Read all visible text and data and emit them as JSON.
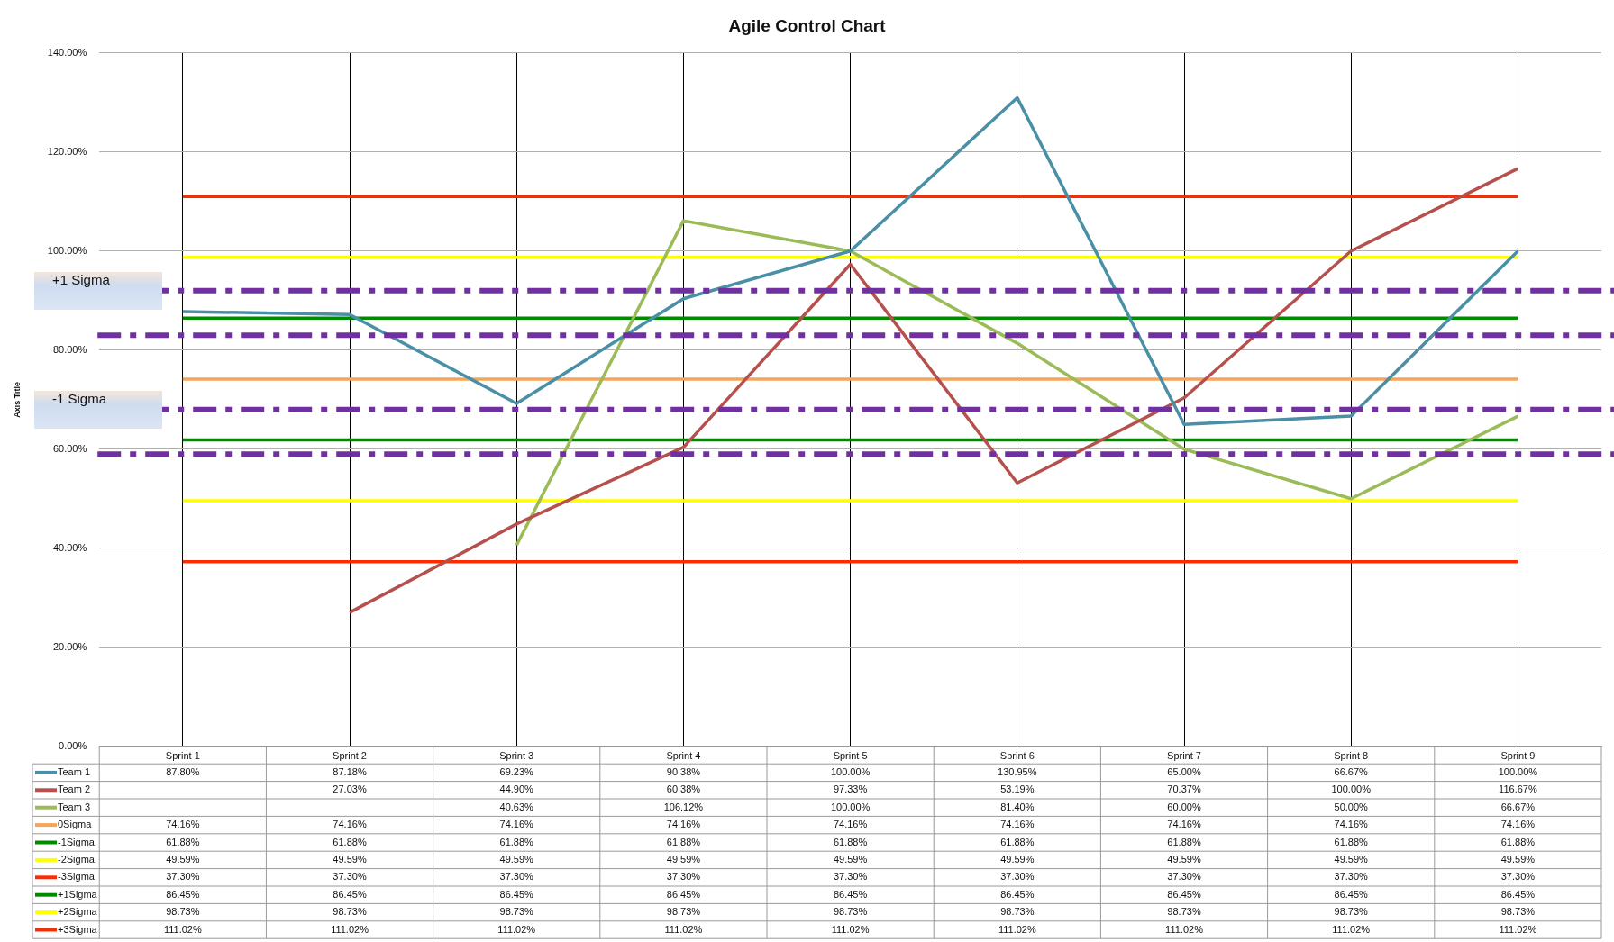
{
  "chart_data": {
    "type": "line",
    "title": "Agile Control Chart",
    "ylabel": "Axis Title",
    "categories": [
      "Sprint 1",
      "Sprint 2",
      "Sprint 3",
      "Sprint 4",
      "Sprint 5",
      "Sprint 6",
      "Sprint 7",
      "Sprint 8",
      "Sprint 9"
    ],
    "ylim": [
      0,
      140
    ],
    "yticks": [
      {
        "value": 0,
        "label": "0.00%"
      },
      {
        "value": 20,
        "label": "20.00%"
      },
      {
        "value": 40,
        "label": "40.00%"
      },
      {
        "value": 60,
        "label": "60.00%"
      },
      {
        "value": 80,
        "label": "80.00%"
      },
      {
        "value": 100,
        "label": "100.00%"
      },
      {
        "value": 120,
        "label": "120.00%"
      },
      {
        "value": 140,
        "label": "140.00%"
      }
    ],
    "grid": true,
    "legend": "bottom",
    "marker": "none",
    "line_style": "solid",
    "series": [
      {
        "name": "Team 1",
        "color": "#4a8fa6",
        "values": [
          87.8,
          87.18,
          69.23,
          90.38,
          100,
          130.95,
          65,
          66.67,
          100
        ],
        "value_labels": [
          "87.80%",
          "87.18%",
          "69.23%",
          "90.38%",
          "100.00%",
          "130.95%",
          "65.00%",
          "66.67%",
          "100.00%"
        ]
      },
      {
        "name": "Team 2",
        "color": "#b5504d",
        "values": [
          null,
          27.03,
          44.9,
          60.38,
          97.33,
          53.19,
          70.37,
          100,
          116.67
        ],
        "value_labels": [
          null,
          "27.03%",
          "44.90%",
          "60.38%",
          "97.33%",
          "53.19%",
          "70.37%",
          "100.00%",
          "116.67%"
        ]
      },
      {
        "name": "Team 3",
        "color": "#9bbb59",
        "values": [
          null,
          null,
          40.63,
          106.12,
          100,
          81.4,
          60,
          50,
          66.67
        ],
        "value_labels": [
          null,
          null,
          "40.63%",
          "106.12%",
          "100.00%",
          "81.40%",
          "60.00%",
          "50.00%",
          "66.67%"
        ]
      },
      {
        "name": "0Sigma",
        "color": "#f5a55a",
        "values": [
          74.16,
          74.16,
          74.16,
          74.16,
          74.16,
          74.16,
          74.16,
          74.16,
          74.16
        ],
        "value_labels": [
          "74.16%",
          "74.16%",
          "74.16%",
          "74.16%",
          "74.16%",
          "74.16%",
          "74.16%",
          "74.16%",
          "74.16%"
        ]
      },
      {
        "name": "-1Sigma",
        "color": "#008a00",
        "values": [
          61.88,
          61.88,
          61.88,
          61.88,
          61.88,
          61.88,
          61.88,
          61.88,
          61.88
        ],
        "value_labels": [
          "61.88%",
          "61.88%",
          "61.88%",
          "61.88%",
          "61.88%",
          "61.88%",
          "61.88%",
          "61.88%",
          "61.88%"
        ]
      },
      {
        "name": "-2Sigma",
        "color": "#ffff00",
        "values": [
          49.59,
          49.59,
          49.59,
          49.59,
          49.59,
          49.59,
          49.59,
          49.59,
          49.59
        ],
        "value_labels": [
          "49.59%",
          "49.59%",
          "49.59%",
          "49.59%",
          "49.59%",
          "49.59%",
          "49.59%",
          "49.59%",
          "49.59%"
        ]
      },
      {
        "name": "-3Sigma",
        "color": "#ff2a00",
        "values": [
          37.3,
          37.3,
          37.3,
          37.3,
          37.3,
          37.3,
          37.3,
          37.3,
          37.3
        ],
        "value_labels": [
          "37.30%",
          "37.30%",
          "37.30%",
          "37.30%",
          "37.30%",
          "37.30%",
          "37.30%",
          "37.30%",
          "37.30%"
        ]
      },
      {
        "name": "+1Sigma",
        "color": "#008a00",
        "values": [
          86.45,
          86.45,
          86.45,
          86.45,
          86.45,
          86.45,
          86.45,
          86.45,
          86.45
        ],
        "value_labels": [
          "86.45%",
          "86.45%",
          "86.45%",
          "86.45%",
          "86.45%",
          "86.45%",
          "86.45%",
          "86.45%",
          "86.45%"
        ]
      },
      {
        "name": "+2Sigma",
        "color": "#ffff00",
        "values": [
          98.73,
          98.73,
          98.73,
          98.73,
          98.73,
          98.73,
          98.73,
          98.73,
          98.73
        ],
        "value_labels": [
          "98.73%",
          "98.73%",
          "98.73%",
          "98.73%",
          "98.73%",
          "98.73%",
          "98.73%",
          "98.73%",
          "98.73%"
        ]
      },
      {
        "name": "+3Sigma",
        "color": "#ff2a00",
        "values": [
          111.02,
          111.02,
          111.02,
          111.02,
          111.02,
          111.02,
          111.02,
          111.02,
          111.02
        ],
        "value_labels": [
          "111.02%",
          "111.02%",
          "111.02%",
          "111.02%",
          "111.02%",
          "111.02%",
          "111.02%",
          "111.02%",
          "111.02%"
        ]
      }
    ],
    "ref_lines": [
      {
        "axis": "y",
        "value": 92,
        "label": "+1 Sigma",
        "color": "#7030a0",
        "line_style": "dashed"
      },
      {
        "axis": "y",
        "value": 83,
        "color": "#7030a0",
        "line_style": "dashed"
      },
      {
        "axis": "y",
        "value": 68,
        "label": "-1 Sigma",
        "color": "#7030a0",
        "line_style": "dashed"
      },
      {
        "axis": "y",
        "value": 59,
        "color": "#7030a0",
        "line_style": "dashed"
      }
    ]
  }
}
